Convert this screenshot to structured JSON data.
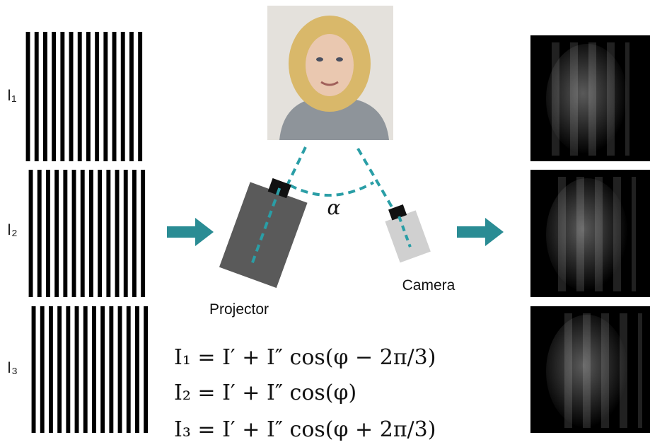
{
  "labels": [
    "I₁",
    "I₂",
    "I₃"
  ],
  "projector": "Projector",
  "camera": "Camera",
  "angle": "α",
  "equations": [
    "I₁ = I′ + I″ cos(φ − 2π/3)",
    "I₂ = I′ + I″ cos(φ)",
    "I₃ = I′ + I″ cos(φ + 2π/3)"
  ]
}
